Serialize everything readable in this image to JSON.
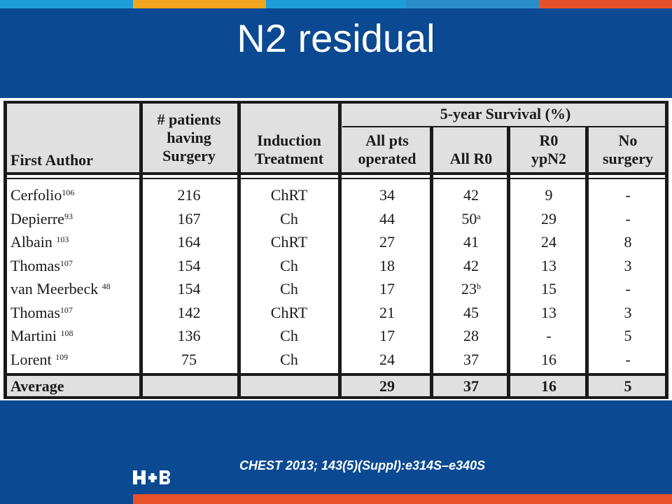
{
  "slide": {
    "title": "N2 residual",
    "citation": "CHEST 2013; 143(5)(Suppl):e314S–e340S",
    "logo_text": "H+B"
  },
  "colors": {
    "background": "#0b4a92",
    "top_stripes": [
      "#1f9fd9",
      "#f2a51e",
      "#1f9fd9",
      "#0b4a92",
      "#2a8ec9",
      "#e8522a"
    ],
    "bottom_stripe": "#e8522a"
  },
  "table": {
    "headers": {
      "author": "First Author",
      "patients": [
        "# patients",
        "having",
        "Surgery"
      ],
      "induction": [
        "Induction",
        "Treatment"
      ],
      "survival_group": "5-year Survival (%)",
      "all_pts": [
        "All pts",
        "operated"
      ],
      "all_r0": "All R0",
      "r0_ypn2": [
        "R0",
        "ypN2"
      ],
      "no_surgery": [
        "No",
        "surgery"
      ]
    },
    "rows": [
      {
        "author": "Cerfolio",
        "ref": "106",
        "patients": "216",
        "treatment": "ChRT",
        "all_pts": "34",
        "all_r0": "42",
        "r0_sup": "",
        "r0_ypn2": "9",
        "no_surgery": "-"
      },
      {
        "author": "Depierre",
        "ref": "93",
        "patients": "167",
        "treatment": "Ch",
        "all_pts": "44",
        "all_r0": "50",
        "r0_sup": "a",
        "r0_ypn2": "29",
        "no_surgery": "-"
      },
      {
        "author": "Albain ",
        "ref": "103",
        "patients": "164",
        "treatment": "ChRT",
        "all_pts": "27",
        "all_r0": "41",
        "r0_sup": "",
        "r0_ypn2": "24",
        "no_surgery": "8"
      },
      {
        "author": "Thomas",
        "ref": "107",
        "patients": "154",
        "treatment": "Ch",
        "all_pts": "18",
        "all_r0": "42",
        "r0_sup": "",
        "r0_ypn2": "13",
        "no_surgery": "3"
      },
      {
        "author": "van Meerbeck ",
        "ref": "48",
        "patients": "154",
        "treatment": "Ch",
        "all_pts": "17",
        "all_r0": "23",
        "r0_sup": "b",
        "r0_ypn2": "15",
        "no_surgery": "-"
      },
      {
        "author": "Thomas",
        "ref": "107",
        "patients": "142",
        "treatment": "ChRT",
        "all_pts": "21",
        "all_r0": "45",
        "r0_sup": "",
        "r0_ypn2": "13",
        "no_surgery": "3"
      },
      {
        "author": "Martini ",
        "ref": "108",
        "patients": "136",
        "treatment": "Ch",
        "all_pts": "17",
        "all_r0": "28",
        "r0_sup": "",
        "r0_ypn2": "-",
        "no_surgery": "5"
      },
      {
        "author": "Lorent ",
        "ref": "109",
        "patients": "75",
        "treatment": "Ch",
        "all_pts": "24",
        "all_r0": "37",
        "r0_sup": "",
        "r0_ypn2": "16",
        "no_surgery": "-"
      }
    ],
    "average": {
      "label": "Average",
      "all_pts": "29",
      "all_r0": "37",
      "r0_ypn2": "16",
      "no_surgery": "5"
    }
  }
}
